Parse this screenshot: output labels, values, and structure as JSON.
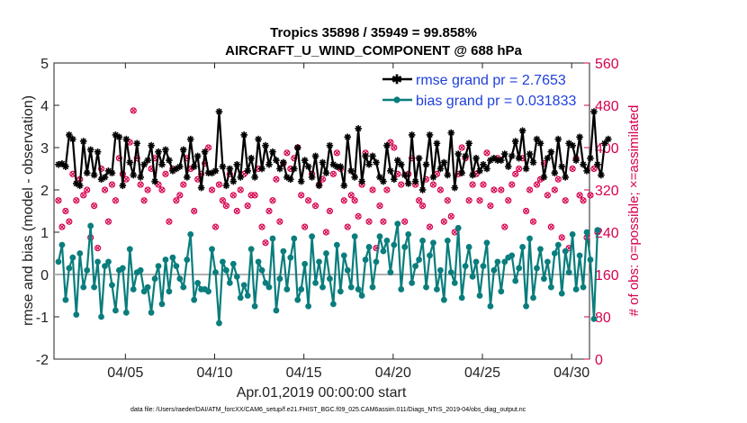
{
  "chart_data": {
    "type": "line",
    "title": "Tropics 35898 / 35949 = 99.858%",
    "subtitle": "AIRCRAFT_U_WIND_COMPONENT @ 688 hPa",
    "xlabel": "Apr.01,2019 00:00:00 start",
    "ylabel": "rmse and bias (model - observation)",
    "ylabel_right": "# of obs: o=possible; ×=assimilated",
    "x_range_days": [
      1,
      31
    ],
    "x_ticks": [
      {
        "day": 5,
        "label": "04/05"
      },
      {
        "day": 10,
        "label": "04/10"
      },
      {
        "day": 15,
        "label": "04/15"
      },
      {
        "day": 20,
        "label": "04/20"
      },
      {
        "day": 25,
        "label": "04/25"
      },
      {
        "day": 30,
        "label": "04/30"
      }
    ],
    "ylim": [
      -2,
      5
    ],
    "y_ticks": [
      "-2",
      "-1",
      "0",
      "1",
      "2",
      "3",
      "4",
      "5"
    ],
    "y2lim": [
      0,
      560
    ],
    "y2_ticks": [
      "0",
      "80",
      "160",
      "240",
      "320",
      "400",
      "480",
      "560"
    ],
    "series": [
      {
        "name": "rmse",
        "legend": "rmse grand pr = 2.7653",
        "color": "#000000",
        "values": [
          2.6,
          2.62,
          2.55,
          3.3,
          3.2,
          2.15,
          2.1,
          3.15,
          2.4,
          2.95,
          2.35,
          2.9,
          2.25,
          2.3,
          2.45,
          2.4,
          3.3,
          3.25,
          2.1,
          3.2,
          2.65,
          2.35,
          3.1,
          2.3,
          2.6,
          2.7,
          3.05,
          2.2,
          2.9,
          2.6,
          2.95,
          2.7,
          2.45,
          2.5,
          2.55,
          2.95,
          2.3,
          3.2,
          2.55,
          2.8,
          2.05,
          2.9,
          2.4,
          2.4,
          2.45,
          3.85,
          2.55,
          2.1,
          2.5,
          2.2,
          2.6,
          2.3,
          3.3,
          2.45,
          2.75,
          2.3,
          3.2,
          2.5,
          3.05,
          2.6,
          2.9,
          2.7,
          2.5,
          2.65,
          2.3,
          2.25,
          2.5,
          3.0,
          2.2,
          2.7,
          2.55,
          2.3,
          2.8,
          2.1,
          2.65,
          2.4,
          3.05,
          2.6,
          2.55,
          2.55,
          2.1,
          3.25,
          2.45,
          2.3,
          3.45,
          2.2,
          2.8,
          2.6,
          2.8,
          2.65,
          2.3,
          2.2,
          3.05,
          2.45,
          2.25,
          2.7,
          2.6,
          2.35,
          2.15,
          3.3,
          2.2,
          2.75,
          2.0,
          2.6,
          3.3,
          2.3,
          3.1,
          2.5,
          2.65,
          2.35,
          3.35,
          2.05,
          2.85,
          2.4,
          2.8,
          3.1,
          2.35,
          2.75,
          2.45,
          2.6,
          2.5,
          2.7,
          2.75,
          2.7,
          2.7,
          2.85,
          2.55,
          2.8,
          3.15,
          2.75,
          3.4,
          2.5,
          2.85,
          2.65,
          3.2,
          3.1,
          2.3,
          2.75,
          2.9,
          2.4,
          3.2,
          2.55,
          2.3,
          3.1,
          3.05,
          2.7,
          3.25,
          2.6,
          2.45,
          2.75,
          3.85,
          2.6,
          2.35,
          3.1,
          3.2
        ]
      },
      {
        "name": "bias",
        "legend": "bias grand pr = 0.031833",
        "color": "#0a7d7d",
        "values": [
          0.3,
          0.7,
          -0.6,
          0.15,
          0.4,
          -0.95,
          0.5,
          -0.3,
          0.1,
          1.15,
          -0.3,
          0.3,
          -1.0,
          0.2,
          0.3,
          -0.25,
          -0.85,
          0.1,
          0.15,
          -0.9,
          0.6,
          -0.35,
          0.05,
          0.1,
          -0.4,
          -0.3,
          -0.9,
          -0.1,
          0.2,
          -0.7,
          0.35,
          -0.4,
          0.4,
          0.2,
          -0.1,
          -0.3,
          0.35,
          0.95,
          -0.6,
          -0.2,
          -0.35,
          -0.35,
          -0.4,
          0.6,
          0.05,
          -1.15,
          0.3,
          0.1,
          -0.2,
          0.25,
          -0.05,
          -0.55,
          -0.25,
          -0.5,
          0.6,
          -0.75,
          0.3,
          0.1,
          -0.2,
          -0.3,
          0.85,
          -0.85,
          -0.1,
          0.55,
          -0.35,
          0.4,
          0.85,
          -0.6,
          -0.35,
          0.25,
          -0.75,
          0.9,
          -0.2,
          0.3,
          -0.3,
          0.5,
          -0.1,
          -0.7,
          0.7,
          -0.4,
          0.45,
          0.1,
          -0.3,
          0.9,
          -0.35,
          -0.5,
          0.35,
          0.65,
          -0.3,
          0.3,
          0.9,
          0.55,
          0.8,
          0.05,
          0.7,
          1.2,
          -0.35,
          0.65,
          0.95,
          -0.2,
          0.2,
          0.35,
          0.8,
          -0.3,
          0.45,
          0.75,
          -0.35,
          0.1,
          -0.6,
          0.8,
          0.05,
          -0.2,
          1.1,
          -0.55,
          0.2,
          0.65,
          -0.05,
          0.3,
          -0.5,
          0.2,
          0.75,
          -0.75,
          0.1,
          0.3,
          -0.4,
          0.3,
          0.4,
          0.45,
          -0.15,
          0.15,
          0.65,
          -0.75,
          0.85,
          -0.55,
          0.15,
          0.6,
          -0.1,
          0.3,
          -0.3,
          0.5,
          0.7,
          -0.45,
          0.55,
          0.05,
          0.95,
          -0.35,
          0.45,
          -0.3,
          1.0,
          0.35,
          -1.05,
          1.05
        ]
      }
    ],
    "obs_count_possible": [
      300,
      250,
      280,
      260,
      350,
      300,
      340,
      310,
      320,
      230,
      290,
      210,
      360,
      320,
      260,
      330,
      300,
      380,
      350,
      340,
      410,
      470,
      380,
      330,
      300,
      320,
      360,
      380,
      330,
      320,
      350,
      260,
      360,
      300,
      310,
      330,
      380,
      360,
      280,
      340,
      350,
      370,
      400,
      320,
      250,
      330,
      300,
      290,
      350,
      310,
      280,
      320,
      350,
      290,
      310,
      310,
      360,
      250,
      220,
      280,
      300,
      340,
      260,
      370,
      390,
      360,
      380,
      400,
      310,
      250,
      300,
      350,
      290,
      330,
      340,
      240,
      280,
      350,
      390,
      360,
      300,
      250,
      310,
      300,
      270,
      330,
      390,
      260,
      320,
      210,
      290,
      260,
      320,
      410,
      400,
      350,
      330,
      260,
      350,
      380,
      330,
      300,
      290,
      340,
      250,
      330,
      350,
      320,
      260,
      300,
      270,
      240,
      350,
      400,
      380,
      300,
      330,
      350,
      300,
      330,
      390,
      290,
      320,
      380,
      320,
      250,
      300,
      330,
      350,
      360,
      380,
      280,
      320,
      260,
      330,
      340,
      370,
      310,
      250,
      320,
      340,
      230,
      300,
      210,
      360,
      380,
      310,
      300,
      230,
      310,
      360,
      240
    ],
    "obs_count_assimilated": [
      300,
      250,
      280,
      260,
      350,
      300,
      340,
      310,
      320,
      230,
      290,
      210,
      360,
      320,
      260,
      330,
      300,
      380,
      350,
      340,
      410,
      470,
      380,
      330,
      300,
      320,
      360,
      380,
      330,
      320,
      350,
      260,
      360,
      300,
      310,
      330,
      380,
      360,
      280,
      340,
      350,
      370,
      400,
      320,
      250,
      330,
      300,
      290,
      350,
      310,
      280,
      320,
      350,
      290,
      310,
      310,
      360,
      250,
      220,
      280,
      300,
      340,
      260,
      370,
      390,
      360,
      380,
      400,
      310,
      250,
      300,
      350,
      290,
      330,
      340,
      240,
      280,
      350,
      390,
      360,
      300,
      250,
      310,
      300,
      270,
      330,
      390,
      260,
      320,
      210,
      290,
      260,
      320,
      410,
      400,
      350,
      330,
      260,
      350,
      380,
      330,
      300,
      290,
      340,
      250,
      330,
      350,
      320,
      260,
      300,
      270,
      240,
      350,
      400,
      380,
      300,
      330,
      350,
      300,
      330,
      390,
      290,
      320,
      380,
      320,
      250,
      300,
      330,
      350,
      360,
      380,
      280,
      320,
      260,
      330,
      340,
      370,
      310,
      250,
      320,
      340,
      230,
      300,
      210,
      360,
      380,
      310,
      300,
      230,
      310,
      360,
      240
    ],
    "zero_line": 0,
    "footer": "data file: /Users/raeder/DAI/ATM_forcXX/CAM6_setup/f.e21.FHIST_BGC.f09_025.CAM6assim.011/Diags_NTrS_2019-04/obs_diag_output.nc"
  },
  "colors": {
    "rmse": "#000000",
    "bias": "#0a7d7d",
    "obs": "#d6004f",
    "legend_text": "#1f3fdc",
    "zero_line": "#b0b0b0"
  }
}
